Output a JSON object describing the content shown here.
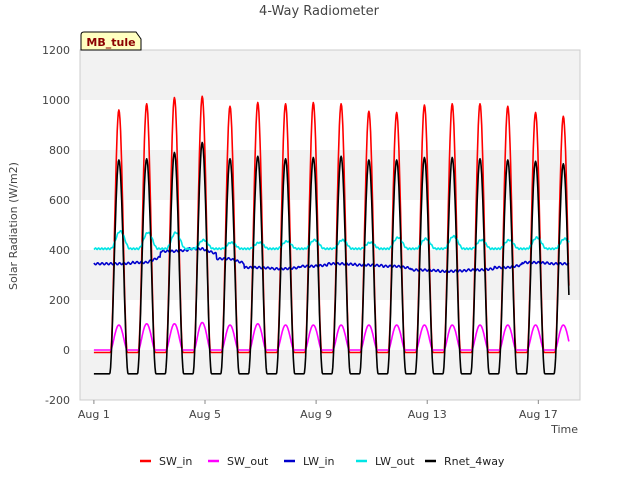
{
  "chart_data": {
    "type": "line",
    "title": "4-Way Radiometer",
    "xlabel": "Time",
    "ylabel": "Solar Radiation (W/m2)",
    "site_label": "MB_tule",
    "xlim": [
      0.5,
      18.5
    ],
    "ylim": [
      -200,
      1200
    ],
    "yticks": [
      -200,
      0,
      200,
      400,
      600,
      800,
      1000,
      1200
    ],
    "xticks": [
      {
        "day": 1,
        "label": "Aug 1"
      },
      {
        "day": 5,
        "label": "Aug 5"
      },
      {
        "day": 9,
        "label": "Aug 9"
      },
      {
        "day": 13,
        "label": "Aug 13"
      },
      {
        "day": 17,
        "label": "Aug 17"
      }
    ],
    "grid": "horizontal alternating bands",
    "legend_position": "bottom",
    "days": [
      1.9,
      2.9,
      3.9,
      4.9,
      5.9,
      6.9,
      7.9,
      8.9,
      9.9,
      10.9,
      11.9,
      12.9,
      13.9,
      14.9,
      15.9,
      16.9,
      17.9
    ],
    "series": [
      {
        "name": "SW_in",
        "color": "#ff0000",
        "base": 0,
        "daily_peak": [
          960,
          985,
          1010,
          1015,
          975,
          990,
          985,
          990,
          985,
          955,
          950,
          980,
          985,
          985,
          975,
          950,
          935
        ]
      },
      {
        "name": "SW_out",
        "color": "#ff00ff",
        "base": 0,
        "daily_peak": [
          100,
          105,
          105,
          110,
          100,
          105,
          100,
          100,
          100,
          100,
          100,
          100,
          100,
          100,
          100,
          100,
          100
        ]
      },
      {
        "name": "LW_in",
        "color": "#0000cc",
        "base": 335,
        "daily_value": [
          345,
          350,
          395,
          405,
          365,
          330,
          325,
          335,
          345,
          340,
          335,
          320,
          315,
          320,
          330,
          350,
          345
        ]
      },
      {
        "name": "LW_out",
        "color": "#00e5e5",
        "base": 405,
        "daily_peak": [
          475,
          470,
          470,
          440,
          430,
          430,
          435,
          440,
          440,
          430,
          450,
          445,
          455,
          440,
          440,
          450,
          445
        ]
      },
      {
        "name": "Rnet_4way",
        "color": "#000000",
        "base": -95,
        "daily_peak": [
          760,
          765,
          790,
          830,
          765,
          775,
          765,
          770,
          775,
          760,
          760,
          770,
          770,
          765,
          760,
          755,
          745
        ]
      }
    ]
  }
}
